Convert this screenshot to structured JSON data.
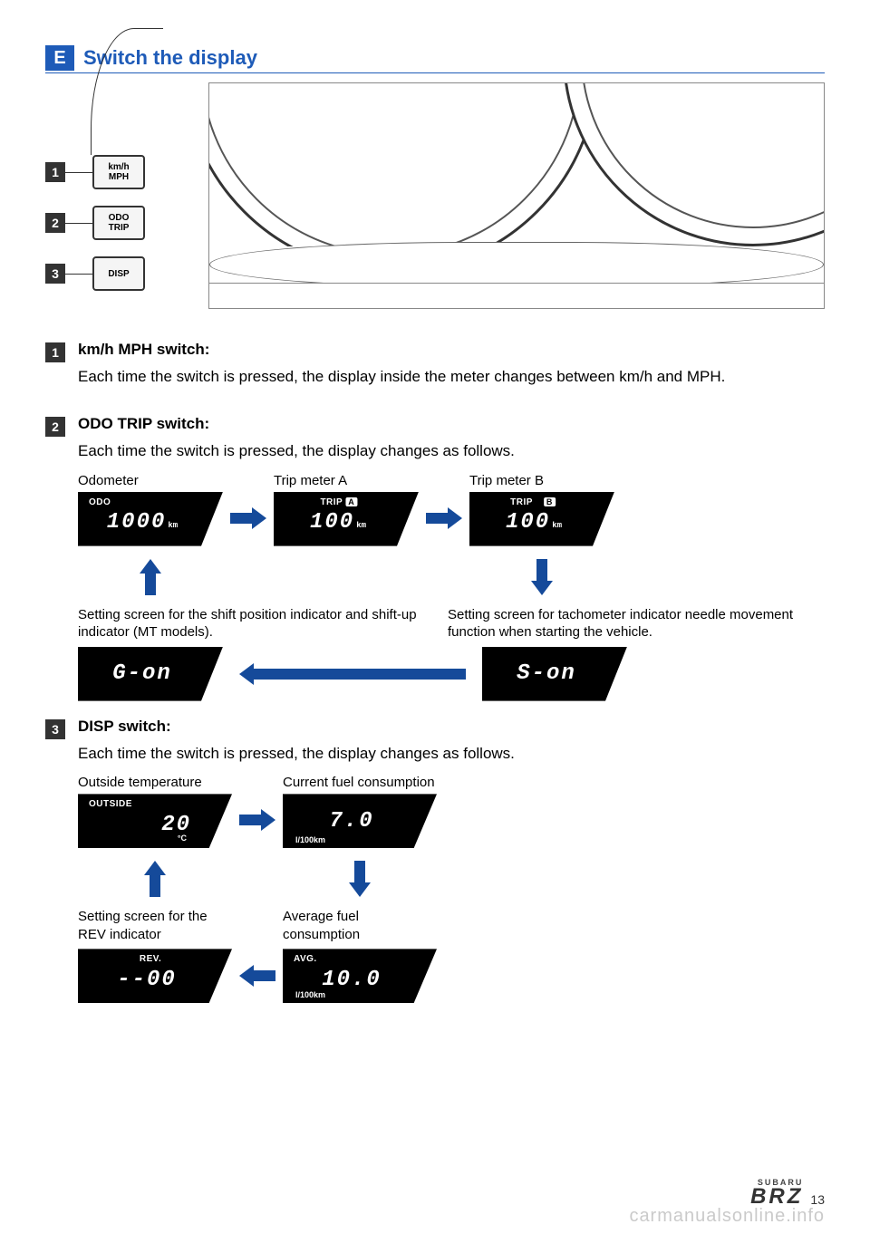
{
  "section": {
    "badge": "E",
    "title": "Switch the display"
  },
  "switches": [
    {
      "num": "1",
      "line1": "km/h",
      "line2": "MPH"
    },
    {
      "num": "2",
      "line1": "ODO",
      "line2": "TRIP"
    },
    {
      "num": "3",
      "line1": "DISP",
      "line2": ""
    }
  ],
  "items": [
    {
      "num": "1",
      "title": "km/h MPH switch:",
      "text": "Each time the switch is pressed, the display inside the meter changes between km/h and MPH."
    },
    {
      "num": "2",
      "title": "ODO TRIP switch:",
      "text": "Each time the switch is pressed, the display changes as follows."
    },
    {
      "num": "3",
      "title": "DISP switch:",
      "text": "Each time the switch is pressed, the display changes as follows."
    }
  ],
  "odo_flow": {
    "odometer": {
      "label": "Odometer",
      "top": "ODO",
      "value": "1000",
      "unit": "km"
    },
    "tripA": {
      "label": "Trip meter A",
      "top": "TRIP",
      "badge": "A",
      "value": "100",
      "unit": "km"
    },
    "tripB": {
      "label": "Trip meter B",
      "top": "TRIP",
      "badge": "B",
      "value": "100",
      "unit": "km"
    },
    "shift_caption": "Setting screen for the shift position indicator and shift-up indicator (MT models).",
    "tach_caption": "Setting screen for tachometer indicator needle movement function when starting the vehicle.",
    "g_on": "G-on",
    "s_on": "S-on"
  },
  "disp_flow": {
    "outside": {
      "label": "Outside temperature",
      "top": "OUTSIDE",
      "value": "20",
      "unit": "°C"
    },
    "current": {
      "label": "Current fuel consumption",
      "value": "7.0",
      "unit": "l/100km"
    },
    "rev_caption": "Setting screen for the REV indicator",
    "avg_caption": "Average fuel consumption",
    "rev": {
      "top": "REV.",
      "value": "--00"
    },
    "avg": {
      "top": "AVG.",
      "value": "10.0",
      "unit": "l/100km"
    }
  },
  "colors": {
    "accent": "#1e5bb8",
    "arrow": "#154a9a"
  },
  "footer": {
    "brand_small": "SUBARU",
    "brand_large": "BRZ",
    "page": "13"
  },
  "watermark": "carmanualsonline.info"
}
